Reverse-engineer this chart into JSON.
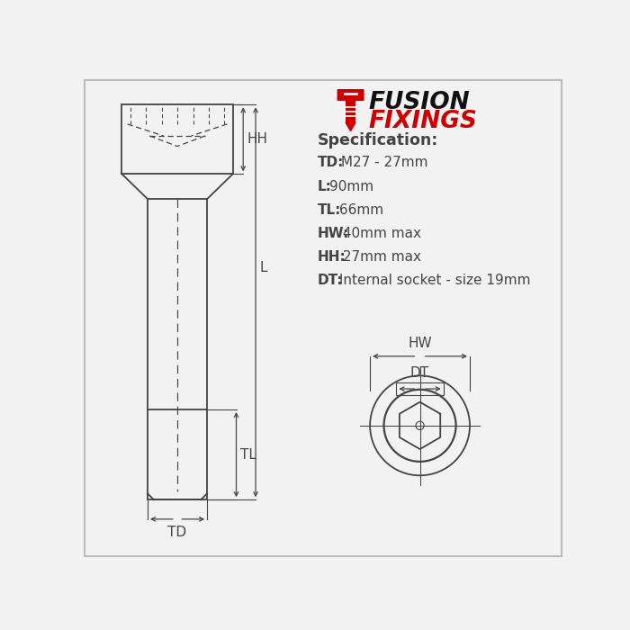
{
  "bg_color": "#f2f2f2",
  "line_color": "#444444",
  "logo_red": "#cc0000",
  "spec_title": "Specification:",
  "spec_items": [
    {
      "label": "TD:",
      "value": " M27 - 27mm"
    },
    {
      "label": "L:",
      "value": "90mm"
    },
    {
      "label": "TL:",
      "value": " 66mm"
    },
    {
      "label": "HW:",
      "value": " 40mm max"
    },
    {
      "label": "HH:",
      "value": " 27mm max"
    },
    {
      "label": "DT:",
      "value": " Internal socket - size 19mm"
    }
  ],
  "dim_labels": {
    "HH": "HH",
    "L": "L",
    "TL": "TL",
    "TD": "TD",
    "HW": "HW",
    "DT": "DT"
  }
}
